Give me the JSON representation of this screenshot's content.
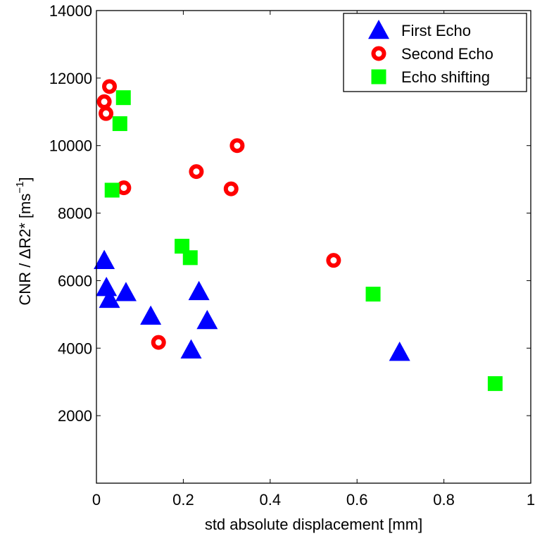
{
  "chart_data": {
    "type": "scatter",
    "title": "",
    "xlabel": "std absolute displacement [mm]",
    "ylabel": "CNR / ΔR2* [ms",
    "ylabel_superscript": "−1",
    "ylabel_suffix": "]",
    "xlim": [
      0,
      1
    ],
    "ylim": [
      0,
      14000
    ],
    "x_ticks": [
      0,
      0.2,
      0.4,
      0.6,
      0.8,
      1
    ],
    "x_tick_labels": [
      "0",
      "0.2",
      "0.4",
      "0.6",
      "0.8",
      "1"
    ],
    "y_ticks": [
      2000,
      4000,
      6000,
      8000,
      10000,
      12000,
      14000
    ],
    "y_tick_labels": [
      "2000",
      "4000",
      "6000",
      "8000",
      "10000",
      "12000",
      "14000"
    ],
    "grid": false,
    "legend_position": "top-right",
    "series": [
      {
        "name": "First Echo",
        "marker": "triangle",
        "color": "#0000ff",
        "points": [
          [
            0.018,
            6600
          ],
          [
            0.023,
            5800
          ],
          [
            0.03,
            5450
          ],
          [
            0.068,
            5650
          ],
          [
            0.125,
            4950
          ],
          [
            0.218,
            3950
          ],
          [
            0.236,
            5680
          ],
          [
            0.255,
            4820
          ],
          [
            0.698,
            3880
          ]
        ]
      },
      {
        "name": "Second Echo",
        "marker": "ring",
        "color": "#ff0000",
        "points": [
          [
            0.03,
            11750
          ],
          [
            0.018,
            11300
          ],
          [
            0.022,
            10950
          ],
          [
            0.063,
            8750
          ],
          [
            0.143,
            4170
          ],
          [
            0.23,
            9230
          ],
          [
            0.31,
            8720
          ],
          [
            0.324,
            10000
          ],
          [
            0.546,
            6600
          ]
        ]
      },
      {
        "name": "Echo shifting",
        "marker": "square",
        "color": "#00ff00",
        "points": [
          [
            0.062,
            11420
          ],
          [
            0.054,
            10650
          ],
          [
            0.036,
            8680
          ],
          [
            0.197,
            7020
          ],
          [
            0.216,
            6680
          ],
          [
            0.637,
            5600
          ],
          [
            0.918,
            2950
          ]
        ]
      }
    ]
  }
}
